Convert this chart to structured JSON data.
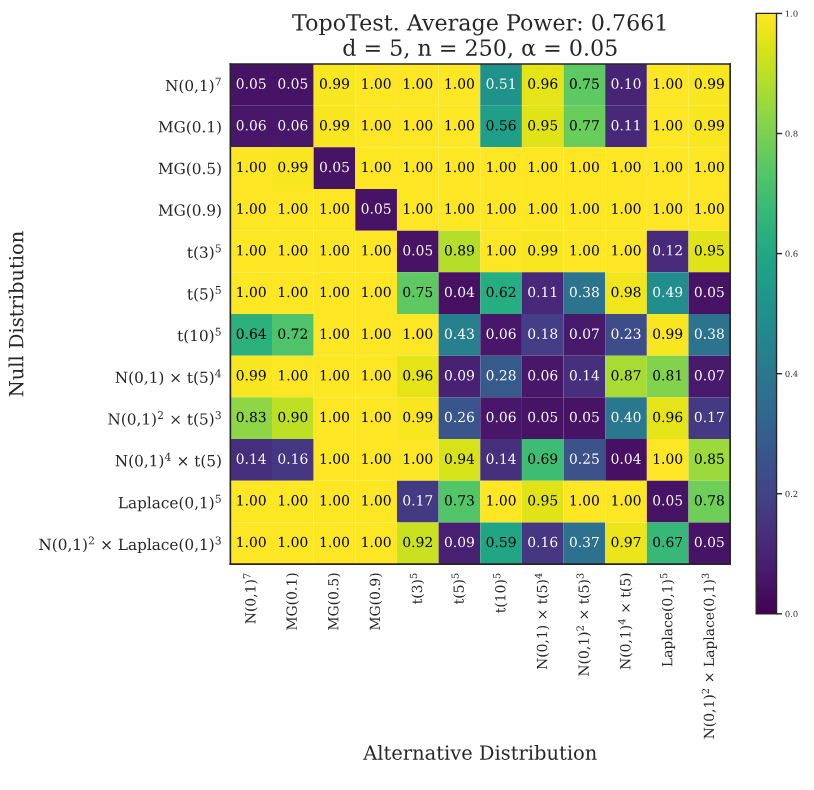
{
  "chart_data": {
    "type": "heatmap",
    "title": "TopoTest. Average Power: 0.7661",
    "subtitle": "d = 5, n = 250, α = 0.05",
    "xlabel": "Alternative Distribution",
    "ylabel": "Null Distribution",
    "categories": [
      "N(0,1)$^{7}$",
      "MG(0.1)",
      "MG(0.5)",
      "MG(0.9)",
      "t(3)$^{5}$",
      "t(5)$^{5}$",
      "t(10)$^{5}$",
      "N(0,1) × t(5)$^{4}$",
      "N(0,1)$^{2}$ × t(5)$^{3}$",
      "N(0,1)$^{4}$ × t(5)",
      "Laplace(0,1)$^{5}$",
      "N(0,1)$^{2}$ × Laplace(0,1)$^{3}$"
    ],
    "y_categories": [
      "N(0,1)$^{7}$",
      "MG(0.1)",
      "MG(0.5)",
      "MG(0.9)",
      "t(3)$^{5}$",
      "t(5)$^{5}$",
      "t(10)$^{5}$",
      "N(0,1) × t(5)$^{4}$",
      "N(0,1)$^{2}$ × t(5)$^{3}$",
      "N(0,1)$^{4}$ × t(5)",
      "Laplace(0,1)$^{5}$",
      "N(0,1)$^{2}$ × Laplace(0,1)$^{3}$"
    ],
    "cells": [
      [
        0.05,
        0.05,
        0.99,
        1.0,
        1.0,
        1.0,
        0.51,
        0.96,
        0.75,
        0.1,
        1.0,
        0.99
      ],
      [
        0.06,
        0.06,
        0.99,
        1.0,
        1.0,
        1.0,
        0.56,
        0.95,
        0.77,
        0.11,
        1.0,
        0.99
      ],
      [
        1.0,
        0.99,
        0.05,
        1.0,
        1.0,
        1.0,
        1.0,
        1.0,
        1.0,
        1.0,
        1.0,
        1.0
      ],
      [
        1.0,
        1.0,
        1.0,
        0.05,
        1.0,
        1.0,
        1.0,
        1.0,
        1.0,
        1.0,
        1.0,
        1.0
      ],
      [
        1.0,
        1.0,
        1.0,
        1.0,
        0.05,
        0.89,
        1.0,
        0.99,
        1.0,
        1.0,
        0.12,
        0.95
      ],
      [
        1.0,
        1.0,
        1.0,
        1.0,
        0.75,
        0.04,
        0.62,
        0.11,
        0.38,
        0.98,
        0.49,
        0.05
      ],
      [
        0.64,
        0.72,
        1.0,
        1.0,
        1.0,
        0.43,
        0.06,
        0.18,
        0.07,
        0.23,
        0.99,
        0.38
      ],
      [
        0.99,
        1.0,
        1.0,
        1.0,
        0.96,
        0.09,
        0.28,
        0.06,
        0.14,
        0.87,
        0.81,
        0.07
      ],
      [
        0.83,
        0.9,
        1.0,
        1.0,
        0.99,
        0.26,
        0.06,
        0.05,
        0.05,
        0.4,
        0.96,
        0.17
      ],
      [
        0.14,
        0.16,
        1.0,
        1.0,
        1.0,
        0.94,
        0.14,
        0.69,
        0.25,
        0.04,
        1.0,
        0.85
      ],
      [
        1.0,
        1.0,
        1.0,
        1.0,
        0.17,
        0.73,
        1.0,
        0.95,
        1.0,
        1.0,
        0.05,
        0.78
      ],
      [
        1.0,
        1.0,
        1.0,
        1.0,
        0.92,
        0.09,
        0.59,
        0.16,
        0.37,
        0.97,
        0.67,
        0.05
      ]
    ],
    "cell_labels": [
      [
        "0.05",
        "0.05",
        "0.99",
        "1.00",
        "1.00",
        "1.00",
        "0.51",
        "0.96",
        "0.75",
        "0.10",
        "1.00",
        "0.99"
      ],
      [
        "0.06",
        "0.06",
        "0.99",
        "1.00",
        "1.00",
        "1.00",
        "0.56",
        "0.95",
        "0.77",
        "0.11",
        "1.00",
        "0.99"
      ],
      [
        "1.00",
        "0.99",
        "0.05",
        "1.00",
        "1.00",
        "1.00",
        "1.00",
        "1.00",
        "1.00",
        "1.00",
        "1.00",
        "1.00"
      ],
      [
        "1.00",
        "1.00",
        "1.00",
        "0.05",
        "1.00",
        "1.00",
        "1.00",
        "1.00",
        "1.00",
        "1.00",
        "1.00",
        "1.00"
      ],
      [
        "1.00",
        "1.00",
        "1.00",
        "1.00",
        "0.05",
        "0.89",
        "1.00",
        "0.99",
        "1.00",
        "1.00",
        "0.12",
        "0.95"
      ],
      [
        "1.00",
        "1.00",
        "1.00",
        "1.00",
        "0.75",
        "0.04",
        "0.62",
        "0.11",
        "0.38",
        "0.98",
        "0.49",
        "0.05"
      ],
      [
        "0.64",
        "0.72",
        "1.00",
        "1.00",
        "1.00",
        "0.43",
        "0.06",
        "0.18",
        "0.07",
        "0.23",
        "0.99",
        "0.38"
      ],
      [
        "0.99",
        "1.00",
        "1.00",
        "1.00",
        "0.96",
        "0.09",
        "0.28",
        "0.06",
        "0.14",
        "0.87",
        "0.81",
        "0.07"
      ],
      [
        "0.83",
        "0.90",
        "1.00",
        "1.00",
        "0.99",
        "0.26",
        "0.06",
        "0.05",
        "0.05",
        "0.40",
        "0.96",
        "0.17"
      ],
      [
        "0.14",
        "0.16",
        "1.00",
        "1.00",
        "1.00",
        "0.94",
        "0.14",
        "0.69",
        "0.25",
        "0.04",
        "1.00",
        "0.85"
      ],
      [
        "1.00",
        "1.00",
        "1.00",
        "1.00",
        "0.17",
        "0.73",
        "1.00",
        "0.95",
        "1.00",
        "1.00",
        "0.05",
        "0.78"
      ],
      [
        "1.00",
        "1.00",
        "1.00",
        "1.00",
        "0.92",
        "0.09",
        "0.59",
        "0.16",
        "0.37",
        "0.97",
        "0.67",
        "0.05"
      ]
    ],
    "clim": [
      0,
      1
    ],
    "cticks": [
      {
        "value": 0,
        "label": "0.0"
      },
      {
        "value": 0.2,
        "label": "0.2"
      },
      {
        "value": 0.4,
        "label": "0.4"
      },
      {
        "value": 0.6,
        "label": "0.6"
      },
      {
        "value": 0.8,
        "label": "0.8"
      },
      {
        "value": 1,
        "label": "1.0"
      }
    ]
  }
}
